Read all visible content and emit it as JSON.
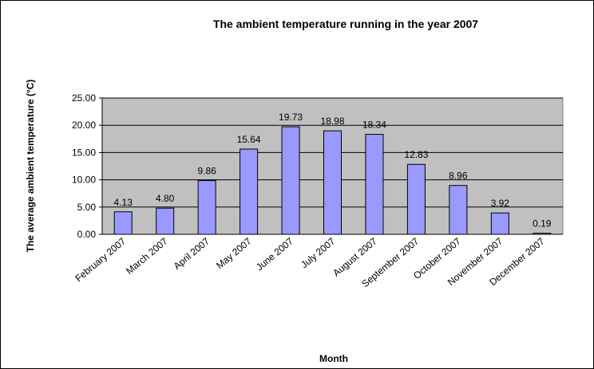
{
  "chart_data": {
    "type": "bar",
    "title": "The ambient temperature running in the year 2007",
    "y_label": "The average ambient temperature (°C)",
    "x_label": "Month",
    "categories": [
      "February 2007",
      "March 2007",
      "April 2007",
      "May 2007",
      "June 2007",
      "July 2007",
      "August 2007",
      "September 2007",
      "October 2007",
      "November 2007",
      "December 2007"
    ],
    "values": [
      4.13,
      4.8,
      9.86,
      15.64,
      19.73,
      18.98,
      18.34,
      12.83,
      8.96,
      3.92,
      0.19
    ],
    "value_labels": [
      "4.13",
      "4.80",
      "9.86",
      "15.64",
      "19.73",
      "18.98",
      "18.34",
      "12.83",
      "8.96",
      "3.92",
      "0.19"
    ],
    "color": "#9999ff",
    "ylim": [
      0,
      25
    ],
    "yticks": [
      {
        "value": 0,
        "label": "0.00"
      },
      {
        "value": 5,
        "label": "5.00"
      },
      {
        "value": 10,
        "label": "10.00"
      },
      {
        "value": 15,
        "label": "15.00"
      },
      {
        "value": 20,
        "label": "20.00"
      },
      {
        "value": 25,
        "label": "25.00"
      }
    ],
    "grid": true
  }
}
